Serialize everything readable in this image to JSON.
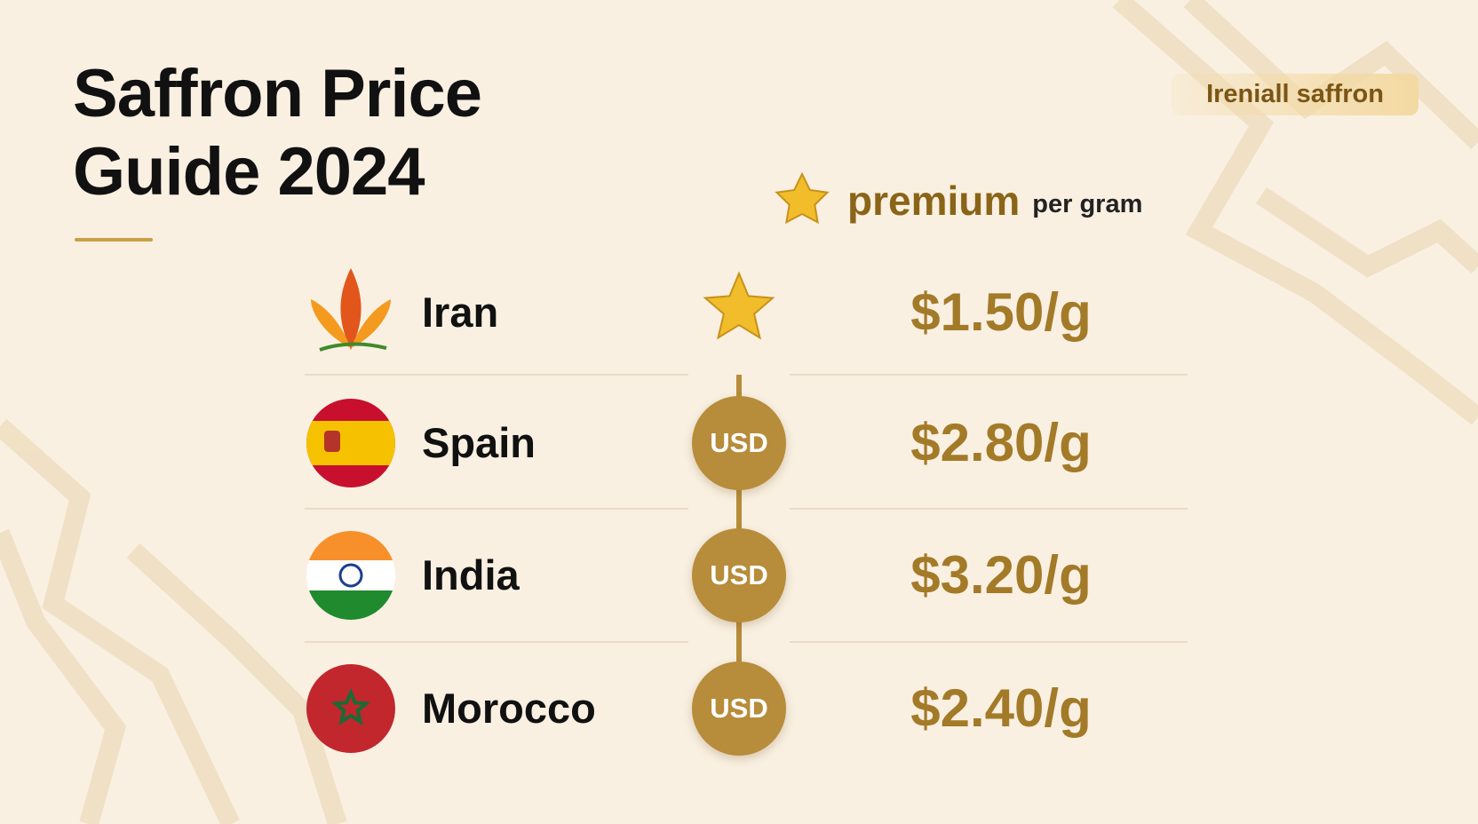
{
  "header": {
    "title": "Saffron Price Guide 2024",
    "badge": "Ireniall saffron"
  },
  "legend": {
    "label": "premium",
    "unit": "per gram"
  },
  "rows": [
    {
      "country": "Iran",
      "price": "$1.50/g"
    },
    {
      "country": "Spain",
      "currency": "USD",
      "price": "$2.80/g"
    },
    {
      "country": "India",
      "currency": "USD",
      "price": "$3.20/g"
    },
    {
      "country": "Morocco",
      "currency": "USD",
      "price": "$2.40/g"
    }
  ]
}
